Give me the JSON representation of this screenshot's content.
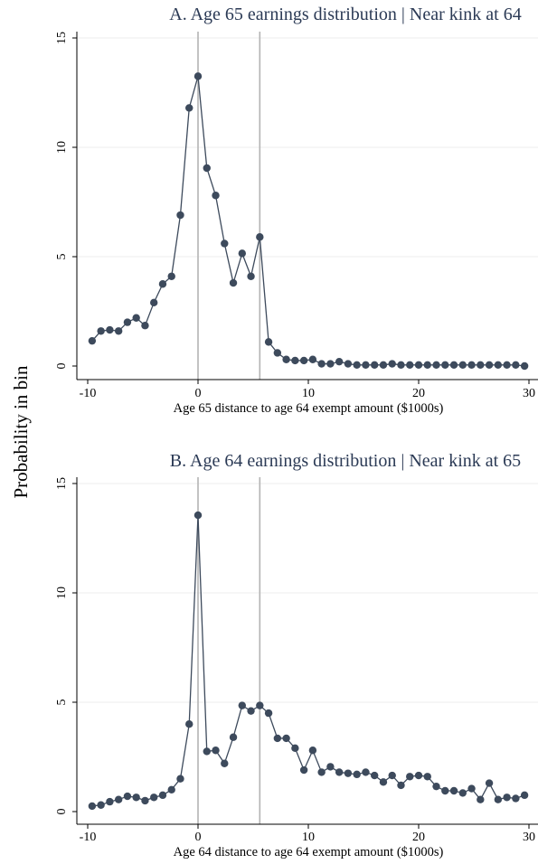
{
  "figure": {
    "ylabel": "Probability in bin"
  },
  "chart_data": [
    {
      "type": "line",
      "title": "A.  Age 65 earnings distribution | Near kink at 64",
      "xlabel": "Age 65 distance to age 64 exempt amount ($1000s)",
      "ylabel": "Probability in bin",
      "xlim": [
        -10,
        30
      ],
      "ylim": [
        0,
        15
      ],
      "xticks": [
        -10,
        0,
        10,
        20,
        30
      ],
      "yticks": [
        0,
        5,
        10,
        15
      ],
      "vlines": [
        0,
        5.6
      ],
      "grid": true,
      "x": [
        -9.6,
        -8.8,
        -8.0,
        -7.2,
        -6.4,
        -5.6,
        -4.8,
        -4.0,
        -3.2,
        -2.4,
        -1.6,
        -0.8,
        0.0,
        0.8,
        1.6,
        2.4,
        3.2,
        4.0,
        4.8,
        5.6,
        6.4,
        7.2,
        8.0,
        8.8,
        9.6,
        10.4,
        11.2,
        12.0,
        12.8,
        13.6,
        14.4,
        15.2,
        16.0,
        16.8,
        17.6,
        18.4,
        19.2,
        20.0,
        20.8,
        21.6,
        22.4,
        23.2,
        24.0,
        24.8,
        25.6,
        26.4,
        27.2,
        28.0,
        28.8,
        29.6
      ],
      "series": [
        {
          "values": [
            1.15,
            1.6,
            1.65,
            1.6,
            2.0,
            2.2,
            1.85,
            2.9,
            3.75,
            4.1,
            6.9,
            11.8,
            13.25,
            9.05,
            7.8,
            5.6,
            3.8,
            5.15,
            4.1,
            5.9,
            1.1,
            0.6,
            0.3,
            0.25,
            0.25,
            0.3,
            0.1,
            0.1,
            0.2,
            0.1,
            0.05,
            0.05,
            0.05,
            0.05,
            0.1,
            0.05,
            0.05,
            0.05,
            0.05,
            0.05,
            0.05,
            0.05,
            0.05,
            0.05,
            0.05,
            0.05,
            0.05,
            0.05,
            0.05,
            0.0
          ]
        }
      ]
    },
    {
      "type": "line",
      "title": "B. Age 64 earnings distribution | Near kink at 65",
      "xlabel": "Age 64 distance to age 64 exempt amount ($1000s)",
      "ylabel": "Probability in bin",
      "xlim": [
        -10,
        30
      ],
      "ylim": [
        0,
        15
      ],
      "xticks": [
        -10,
        0,
        10,
        20,
        30
      ],
      "yticks": [
        0,
        5,
        10,
        15
      ],
      "vlines": [
        0,
        5.6
      ],
      "grid": true,
      "x": [
        -9.6,
        -8.8,
        -8.0,
        -7.2,
        -6.4,
        -5.6,
        -4.8,
        -4.0,
        -3.2,
        -2.4,
        -1.6,
        -0.8,
        0.0,
        0.8,
        1.6,
        2.4,
        3.2,
        4.0,
        4.8,
        5.6,
        6.4,
        7.2,
        8.0,
        8.8,
        9.6,
        10.4,
        11.2,
        12.0,
        12.8,
        13.6,
        14.4,
        15.2,
        16.0,
        16.8,
        17.6,
        18.4,
        19.2,
        20.0,
        20.8,
        21.6,
        22.4,
        23.2,
        24.0,
        24.8,
        25.6,
        26.4,
        27.2,
        28.0,
        28.8,
        29.6
      ],
      "series": [
        {
          "values": [
            0.25,
            0.3,
            0.45,
            0.55,
            0.7,
            0.65,
            0.5,
            0.65,
            0.75,
            1.0,
            1.5,
            4.0,
            13.55,
            2.75,
            2.8,
            2.2,
            3.4,
            4.85,
            4.6,
            4.85,
            4.5,
            3.35,
            3.35,
            2.9,
            1.9,
            2.8,
            1.8,
            2.05,
            1.8,
            1.75,
            1.7,
            1.8,
            1.65,
            1.35,
            1.65,
            1.2,
            1.6,
            1.65,
            1.6,
            1.15,
            0.95,
            0.95,
            0.85,
            1.05,
            0.55,
            1.3,
            0.55,
            0.65,
            0.6,
            0.75
          ]
        }
      ]
    }
  ]
}
